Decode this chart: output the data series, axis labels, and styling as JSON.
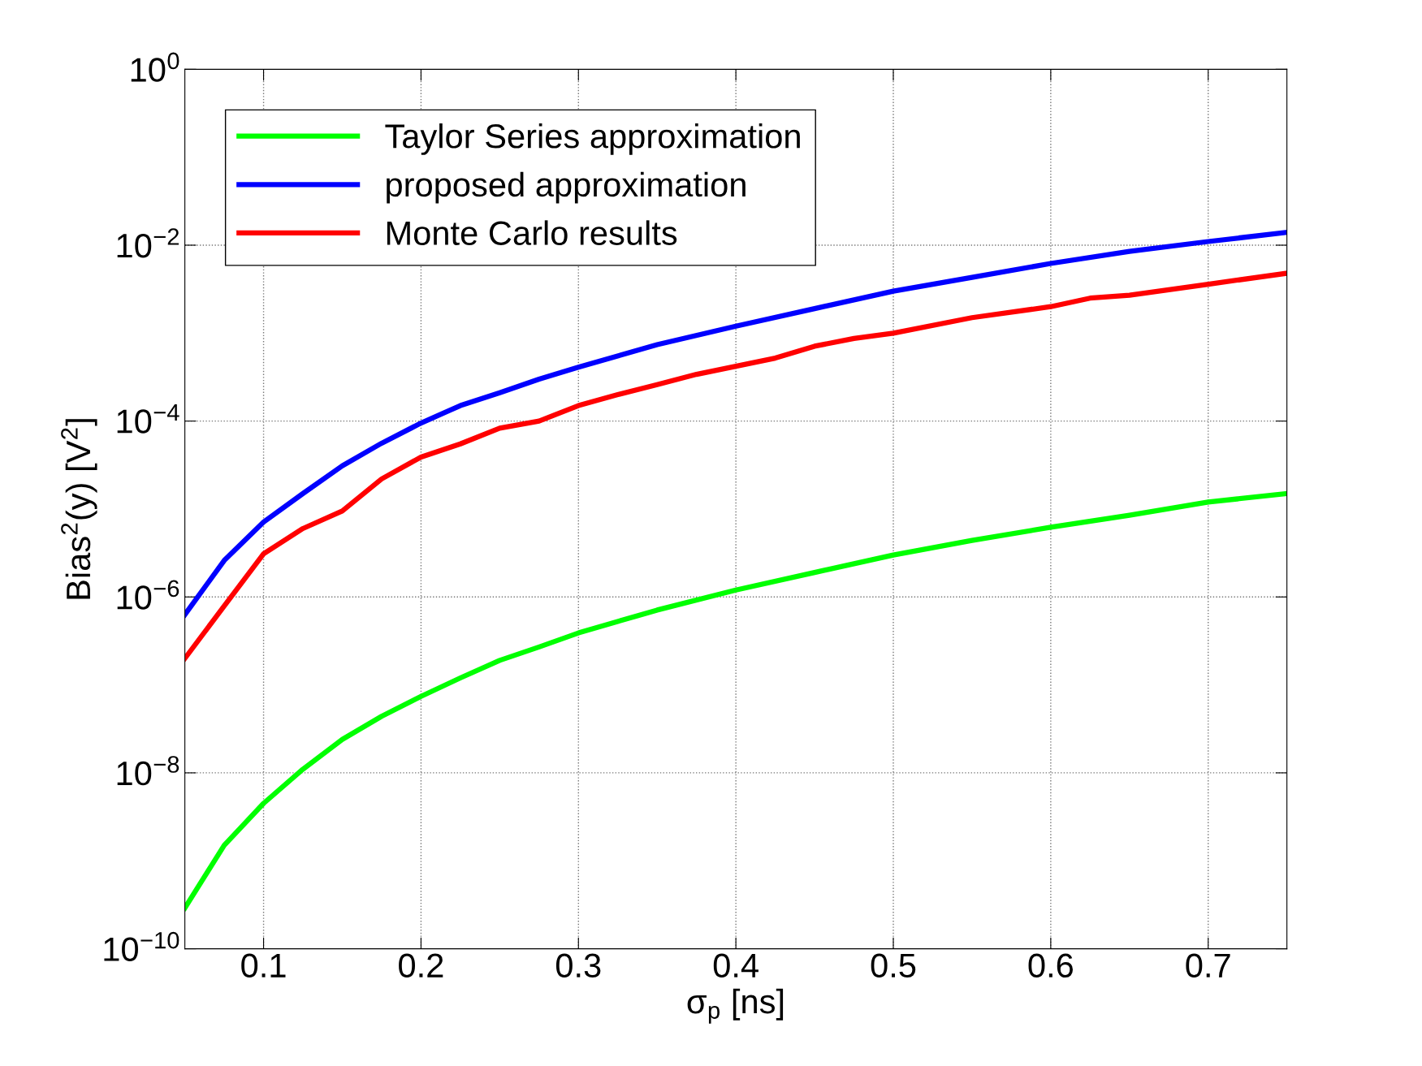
{
  "chart_data": {
    "type": "line",
    "xlabel": "σ$_{p}$ [ns]",
    "ylabel": "Bias$^{2}$(y) [V$^{2}$]",
    "log": "y",
    "grid": true,
    "legend": "top left",
    "line_style": "solid",
    "marker": "none",
    "xlim": [
      0.05,
      0.75
    ],
    "xticks": [
      0.1,
      0.2,
      0.3,
      0.4,
      0.5,
      0.6,
      0.7
    ],
    "ylim": [
      1e-10,
      1
    ],
    "yticks": [
      {
        "value": 1e-10,
        "label": "10$^{−10}$"
      },
      {
        "value": 1e-08,
        "label": "10$^{−8}$"
      },
      {
        "value": 1e-06,
        "label": "10$^{−6}$"
      },
      {
        "value": 0.0001,
        "label": "10$^{−4}$"
      },
      {
        "value": 0.01,
        "label": "10$^{−2}$"
      },
      {
        "value": 1,
        "label": "10$^{0}$"
      }
    ],
    "series": [
      {
        "name": "Taylor Series approximation",
        "color": "#00ff00",
        "x": [
          0.05,
          0.075,
          0.1,
          0.125,
          0.15,
          0.175,
          0.2,
          0.225,
          0.25,
          0.275,
          0.3,
          0.35,
          0.4,
          0.45,
          0.5,
          0.55,
          0.6,
          0.65,
          0.7,
          0.75
        ],
        "values": [
          2.9e-10,
          1.5e-09,
          4.5e-09,
          1.1e-08,
          2.4e-08,
          4.4e-08,
          7.4e-08,
          1.2e-07,
          1.9e-07,
          2.7e-07,
          3.9e-07,
          7.1e-07,
          1.2e-06,
          1.9e-06,
          3e-06,
          4.4e-06,
          6.2e-06,
          8.5e-06,
          1.2e-05,
          1.5e-05
        ]
      },
      {
        "name": "proposed approximation",
        "color": "#0000ff",
        "x": [
          0.05,
          0.075,
          0.1,
          0.125,
          0.15,
          0.175,
          0.2,
          0.225,
          0.25,
          0.275,
          0.3,
          0.35,
          0.4,
          0.45,
          0.5,
          0.55,
          0.6,
          0.65,
          0.7,
          0.75
        ],
        "values": [
          6.3e-07,
          2.6e-06,
          7.1e-06,
          1.5e-05,
          3.1e-05,
          5.6e-05,
          9.5e-05,
          0.00015,
          0.00021,
          0.0003,
          0.00041,
          0.00074,
          0.0012,
          0.0019,
          0.003,
          0.0043,
          0.0062,
          0.0085,
          0.011,
          0.014
        ]
      },
      {
        "name": "Monte Carlo results",
        "color": "#ff0000",
        "x": [
          0.05,
          0.075,
          0.1,
          0.125,
          0.15,
          0.175,
          0.2,
          0.225,
          0.25,
          0.275,
          0.3,
          0.325,
          0.35,
          0.375,
          0.4,
          0.425,
          0.45,
          0.475,
          0.5,
          0.55,
          0.6,
          0.625,
          0.65,
          0.7,
          0.75
        ],
        "values": [
          2e-07,
          7.9e-07,
          3.1e-06,
          6e-06,
          9.5e-06,
          2.2e-05,
          3.9e-05,
          5.5e-05,
          8.3e-05,
          0.0001,
          0.00015,
          0.0002,
          0.00026,
          0.00034,
          0.00042,
          0.00052,
          0.00071,
          0.00087,
          0.001,
          0.0015,
          0.002,
          0.0025,
          0.0027,
          0.0036,
          0.0048
        ]
      }
    ]
  }
}
